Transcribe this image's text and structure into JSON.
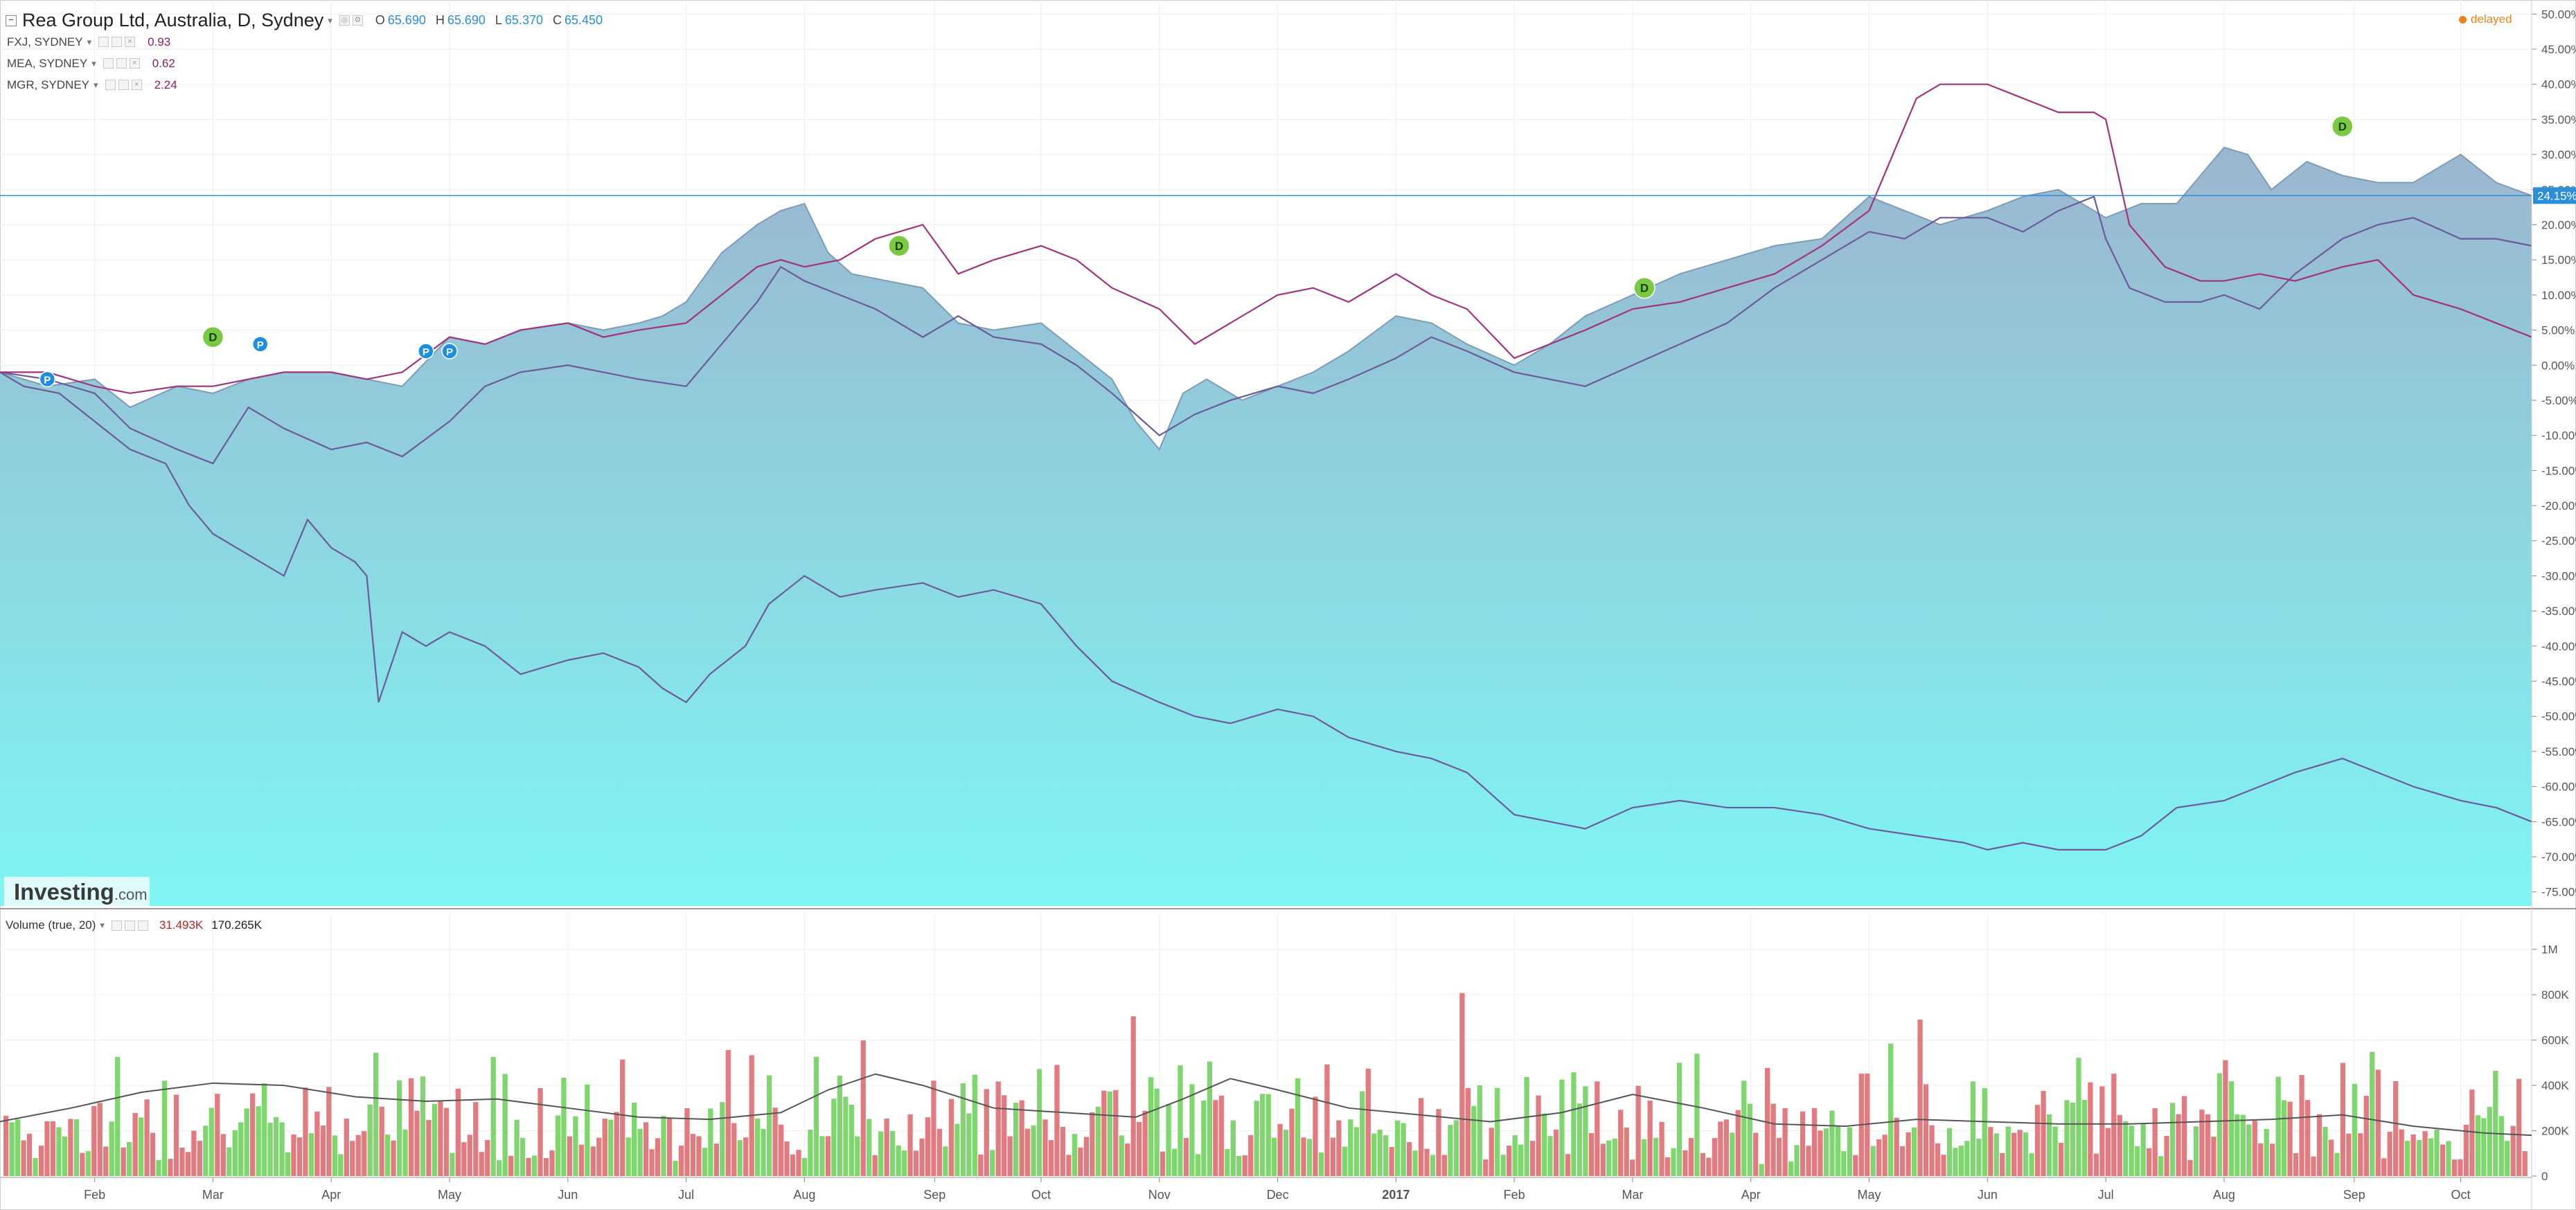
{
  "legend": {
    "title": "Rea Group Ltd, Australia, D, Sydney",
    "o_label": "O",
    "o": "65.690",
    "h_label": "H",
    "h": "65.690",
    "l_label": "L",
    "l": "65.370",
    "c_label": "C",
    "c": "65.450",
    "compares": [
      {
        "name": "FXJ, SYDNEY",
        "value": "0.93"
      },
      {
        "name": "MEA, SYDNEY",
        "value": "0.62"
      },
      {
        "name": "MGR, SYDNEY",
        "value": "2.24"
      }
    ]
  },
  "status": "delayed",
  "volume_legend": {
    "label": "Volume (true, 20)",
    "value1": "31.493K",
    "value2": "170.265K"
  },
  "watermark": {
    "brand": "Investing",
    "suffix": ".com"
  },
  "current_badge": "24.15%",
  "colors": {
    "area_top": "#9bb6cf",
    "area_bottom": "#7ff5f3",
    "area_line": "#7d9cb8",
    "compare_line": "#6c5a9a",
    "magenta_line": "#a2327c",
    "vol_up": "#7fd66f",
    "vol_down": "#e27b7f",
    "ma": "#555555",
    "accent": "#2a8fd8",
    "dividend": "#7ac943",
    "split": "#1d8fe3"
  },
  "chart_data": [
    {
      "type": "area",
      "scale": "percent change",
      "y_ticks": [
        "50.00%",
        "45.00%",
        "40.00%",
        "35.00%",
        "30.00%",
        "25.00%",
        "20.00%",
        "15.00%",
        "10.00%",
        "5.00%",
        "0.00%",
        "-5.00%",
        "-10.00%",
        "-15.00%",
        "-20.00%",
        "-25.00%",
        "-30.00%",
        "-35.00%",
        "-40.00%",
        "-45.00%",
        "-50.00%",
        "-55.00%",
        "-60.00%",
        "-65.00%",
        "-70.00%",
        "-75.00%"
      ],
      "ylim": [
        -77,
        52
      ],
      "x_ticks": [
        "Feb",
        "Mar",
        "Apr",
        "May",
        "Jun",
        "Jul",
        "Aug",
        "Sep",
        "Oct",
        "Nov",
        "Dec",
        "2017",
        "Feb",
        "Mar",
        "Apr",
        "May",
        "Jun",
        "Jul",
        "Aug",
        "Sep",
        "Oct"
      ],
      "x_tick_pos": [
        1.0,
        2.0,
        3.0,
        4.0,
        5.0,
        6.0,
        7.0,
        8.1,
        9.0,
        10.0,
        11.0,
        12.0,
        13.0,
        14.0,
        15.0,
        16.0,
        17.0,
        18.0,
        19.0,
        20.1,
        21.0
      ],
      "xlim": [
        0.2,
        21.6
      ],
      "series": [
        {
          "name": "Rea Group Ltd",
          "style": "area",
          "x": [
            0.2,
            0.6,
            1.0,
            1.3,
            1.7,
            2.0,
            2.3,
            2.6,
            3.0,
            3.3,
            3.6,
            4.0,
            4.3,
            4.6,
            5.0,
            5.3,
            5.6,
            5.8,
            6.0,
            6.3,
            6.6,
            6.8,
            7.0,
            7.2,
            7.4,
            7.7,
            8.0,
            8.3,
            8.6,
            9.0,
            9.3,
            9.6,
            9.8,
            10.0,
            10.2,
            10.4,
            10.7,
            11.0,
            11.3,
            11.6,
            12.0,
            12.3,
            12.6,
            13.0,
            13.3,
            13.6,
            14.0,
            14.4,
            14.8,
            15.2,
            15.6,
            16.0,
            16.3,
            16.6,
            17.0,
            17.3,
            17.6,
            18.0,
            18.3,
            18.6,
            19.0,
            19.2,
            19.4,
            19.7,
            20.0,
            20.3,
            20.6,
            21.0,
            21.3,
            21.6
          ],
          "y": [
            -1,
            -3,
            -2,
            -6,
            -3,
            -4,
            -2,
            -1,
            -1,
            -2,
            -3,
            4,
            3,
            5,
            6,
            5,
            6,
            7,
            9,
            16,
            20,
            22,
            23,
            16,
            13,
            12,
            11,
            6,
            5,
            6,
            2,
            -2,
            -8,
            -12,
            -4,
            -2,
            -5,
            -3,
            -1,
            2,
            7,
            6,
            3,
            0,
            3,
            7,
            10,
            13,
            15,
            17,
            18,
            24,
            22,
            20,
            22,
            24,
            25,
            21,
            23,
            23,
            31,
            30,
            25,
            29,
            27,
            26,
            26,
            30,
            26,
            24.15
          ]
        },
        {
          "name": "FXJ, SYDNEY",
          "style": "line",
          "x": [
            0.2,
            0.6,
            1.0,
            1.3,
            1.7,
            2.0,
            2.3,
            2.6,
            3.0,
            3.3,
            3.6,
            4.0,
            4.3,
            4.6,
            5.0,
            5.3,
            5.6,
            6.0,
            6.3,
            6.6,
            6.8,
            7.0,
            7.3,
            7.6,
            8.0,
            8.3,
            8.6,
            9.0,
            9.3,
            9.6,
            10.0,
            10.3,
            10.6,
            11.0,
            11.3,
            11.6,
            12.0,
            12.3,
            12.6,
            13.0,
            13.3,
            13.6,
            14.0,
            14.4,
            14.8,
            15.2,
            15.6,
            16.0,
            16.3,
            16.6,
            17.0,
            17.3,
            17.6,
            17.9,
            18.0,
            18.2,
            18.5,
            18.8,
            19.0,
            19.3,
            19.6,
            20.0,
            20.3,
            20.6,
            21.0,
            21.3,
            21.6
          ],
          "y": [
            -1,
            -2,
            -4,
            -9,
            -12,
            -14,
            -6,
            -9,
            -12,
            -11,
            -13,
            -8,
            -3,
            -1,
            0,
            -1,
            -2,
            -3,
            3,
            9,
            14,
            12,
            10,
            8,
            4,
            7,
            4,
            3,
            0,
            -4,
            -10,
            -7,
            -5,
            -3,
            -4,
            -2,
            1,
            4,
            2,
            -1,
            -2,
            -3,
            0,
            3,
            6,
            11,
            15,
            19,
            18,
            21,
            21,
            19,
            22,
            24,
            18,
            11,
            9,
            9,
            10,
            8,
            13,
            18,
            20,
            21,
            18,
            18,
            17
          ]
        },
        {
          "name": "MEA, SYDNEY",
          "style": "line",
          "x": [
            0.2,
            0.4,
            0.7,
            1.0,
            1.3,
            1.6,
            1.8,
            2.0,
            2.2,
            2.4,
            2.6,
            2.8,
            3.0,
            3.2,
            3.3,
            3.4,
            3.6,
            3.8,
            4.0,
            4.3,
            4.6,
            5.0,
            5.3,
            5.6,
            5.8,
            6.0,
            6.2,
            6.5,
            6.7,
            7.0,
            7.3,
            7.6,
            8.0,
            8.3,
            8.6,
            9.0,
            9.3,
            9.6,
            10.0,
            10.3,
            10.6,
            11.0,
            11.3,
            11.6,
            12.0,
            12.3,
            12.6,
            13.0,
            13.3,
            13.6,
            14.0,
            14.4,
            14.8,
            15.2,
            15.6,
            16.0,
            16.4,
            16.8,
            17.0,
            17.3,
            17.6,
            18.0,
            18.3,
            18.6,
            19.0,
            19.3,
            19.6,
            20.0,
            20.3,
            20.6,
            21.0,
            21.3,
            21.6
          ],
          "y": [
            -1,
            -3,
            -4,
            -8,
            -12,
            -14,
            -20,
            -24,
            -26,
            -28,
            -30,
            -22,
            -26,
            -28,
            -30,
            -48,
            -38,
            -40,
            -38,
            -40,
            -44,
            -42,
            -41,
            -43,
            -46,
            -48,
            -44,
            -40,
            -34,
            -30,
            -33,
            -32,
            -31,
            -33,
            -32,
            -34,
            -40,
            -45,
            -48,
            -50,
            -51,
            -49,
            -50,
            -53,
            -55,
            -56,
            -58,
            -64,
            -65,
            -66,
            -63,
            -62,
            -63,
            -63,
            -64,
            -66,
            -67,
            -68,
            -69,
            -68,
            -69,
            -69,
            -67,
            -63,
            -62,
            -60,
            -58,
            -56,
            -58,
            -60,
            -62,
            -63,
            -65
          ]
        },
        {
          "name": "MGR, SYDNEY",
          "style": "line",
          "x": [
            0.2,
            0.6,
            1.0,
            1.3,
            1.7,
            2.0,
            2.3,
            2.6,
            3.0,
            3.3,
            3.6,
            4.0,
            4.3,
            4.6,
            5.0,
            5.3,
            5.6,
            6.0,
            6.3,
            6.6,
            6.8,
            7.0,
            7.3,
            7.6,
            8.0,
            8.3,
            8.6,
            9.0,
            9.3,
            9.6,
            10.0,
            10.3,
            10.6,
            11.0,
            11.3,
            11.6,
            12.0,
            12.3,
            12.6,
            13.0,
            13.3,
            13.6,
            14.0,
            14.4,
            14.8,
            15.2,
            15.6,
            16.0,
            16.2,
            16.4,
            16.6,
            17.0,
            17.3,
            17.6,
            17.9,
            18.0,
            18.2,
            18.5,
            18.8,
            19.0,
            19.3,
            19.6,
            20.0,
            20.3,
            20.6,
            21.0,
            21.3,
            21.6
          ],
          "y": [
            -1,
            -1,
            -3,
            -4,
            -3,
            -3,
            -2,
            -1,
            -1,
            -2,
            -1,
            4,
            3,
            5,
            6,
            4,
            5,
            6,
            10,
            14,
            15,
            14,
            15,
            18,
            20,
            13,
            15,
            17,
            15,
            11,
            8,
            3,
            6,
            10,
            11,
            9,
            13,
            10,
            8,
            1,
            3,
            5,
            8,
            9,
            11,
            13,
            17,
            22,
            30,
            38,
            40,
            40,
            38,
            36,
            36,
            35,
            20,
            14,
            12,
            12,
            13,
            12,
            14,
            15,
            10,
            8,
            6,
            4
          ]
        }
      ],
      "markers": [
        {
          "type": "P",
          "x": 0.6,
          "y": -2
        },
        {
          "type": "D",
          "x": 2.0,
          "y": 4
        },
        {
          "type": "P",
          "x": 2.4,
          "y": 3
        },
        {
          "type": "P",
          "x": 3.8,
          "y": 2
        },
        {
          "type": "P",
          "x": 4.0,
          "y": 2
        },
        {
          "type": "D",
          "x": 7.8,
          "y": 17
        },
        {
          "type": "D",
          "x": 14.1,
          "y": 11
        },
        {
          "type": "D",
          "x": 20.0,
          "y": 34
        }
      ]
    },
    {
      "type": "bar",
      "title": "Volume (true, 20)",
      "y_ticks": [
        "1M",
        "800K",
        "600K",
        "400K",
        "200K",
        "0"
      ],
      "ylim": [
        0,
        1100000
      ],
      "x_ticks": [
        "Feb",
        "Mar",
        "Apr",
        "May",
        "Jun",
        "Jul",
        "Aug",
        "Sep",
        "Oct",
        "Nov",
        "Dec",
        "2017",
        "Feb",
        "Mar",
        "Apr",
        "May",
        "Jun",
        "Jul",
        "Aug",
        "Sep",
        "Oct"
      ],
      "ma_x": [
        0.2,
        0.8,
        1.4,
        2.0,
        2.6,
        3.2,
        3.8,
        4.4,
        5.0,
        5.6,
        6.2,
        6.8,
        7.2,
        7.6,
        8.0,
        8.6,
        9.2,
        9.8,
        10.2,
        10.6,
        11.0,
        11.6,
        12.2,
        12.8,
        13.4,
        14.0,
        14.6,
        15.2,
        15.8,
        16.4,
        17.0,
        17.6,
        18.2,
        18.8,
        19.4,
        20.0,
        20.6,
        21.2,
        21.6
      ],
      "ma_y": [
        240000,
        300000,
        370000,
        410000,
        400000,
        350000,
        330000,
        340000,
        300000,
        260000,
        250000,
        280000,
        380000,
        450000,
        400000,
        300000,
        280000,
        260000,
        340000,
        430000,
        380000,
        300000,
        270000,
        240000,
        280000,
        360000,
        300000,
        230000,
        220000,
        250000,
        240000,
        230000,
        230000,
        240000,
        250000,
        270000,
        220000,
        190000,
        180000
      ]
    }
  ]
}
